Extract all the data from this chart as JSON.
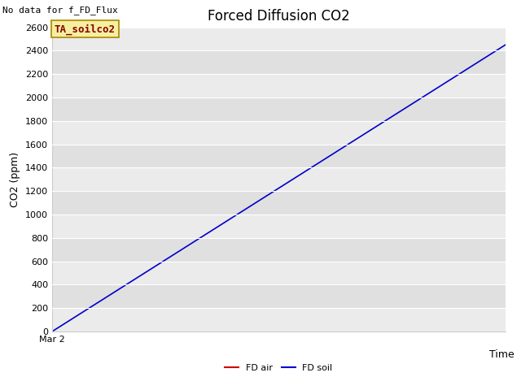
{
  "title": "Forced Diffusion CO2",
  "no_data_text": "No data for f_FD_Flux",
  "ylabel": "CO2 (ppm)",
  "xlabel": "Time",
  "annotation_text": "TA_soilco2",
  "annotation_bg": "#f5f0a0",
  "annotation_text_color": "#880000",
  "annotation_edge_color": "#aa8800",
  "xlim": [
    0,
    1
  ],
  "ylim": [
    0,
    2600
  ],
  "yticks": [
    0,
    200,
    400,
    600,
    800,
    1000,
    1200,
    1400,
    1600,
    1800,
    2000,
    2200,
    2400,
    2600
  ],
  "x_tick_label": "Mar 2",
  "line_fd_soil_color": "#0000cc",
  "line_fd_air_color": "#cc0000",
  "line_x": [
    0,
    1
  ],
  "line_y": [
    0,
    2450
  ],
  "plot_bg_color_light": "#ebebeb",
  "plot_bg_color_dark": "#e0e0e0",
  "grid_color": "#ffffff",
  "legend_fd_air": "FD air",
  "legend_fd_soil": "FD soil",
  "title_fontsize": 12,
  "no_data_fontsize": 8,
  "axis_label_fontsize": 9,
  "tick_fontsize": 8,
  "annotation_fontsize": 9,
  "legend_fontsize": 8
}
